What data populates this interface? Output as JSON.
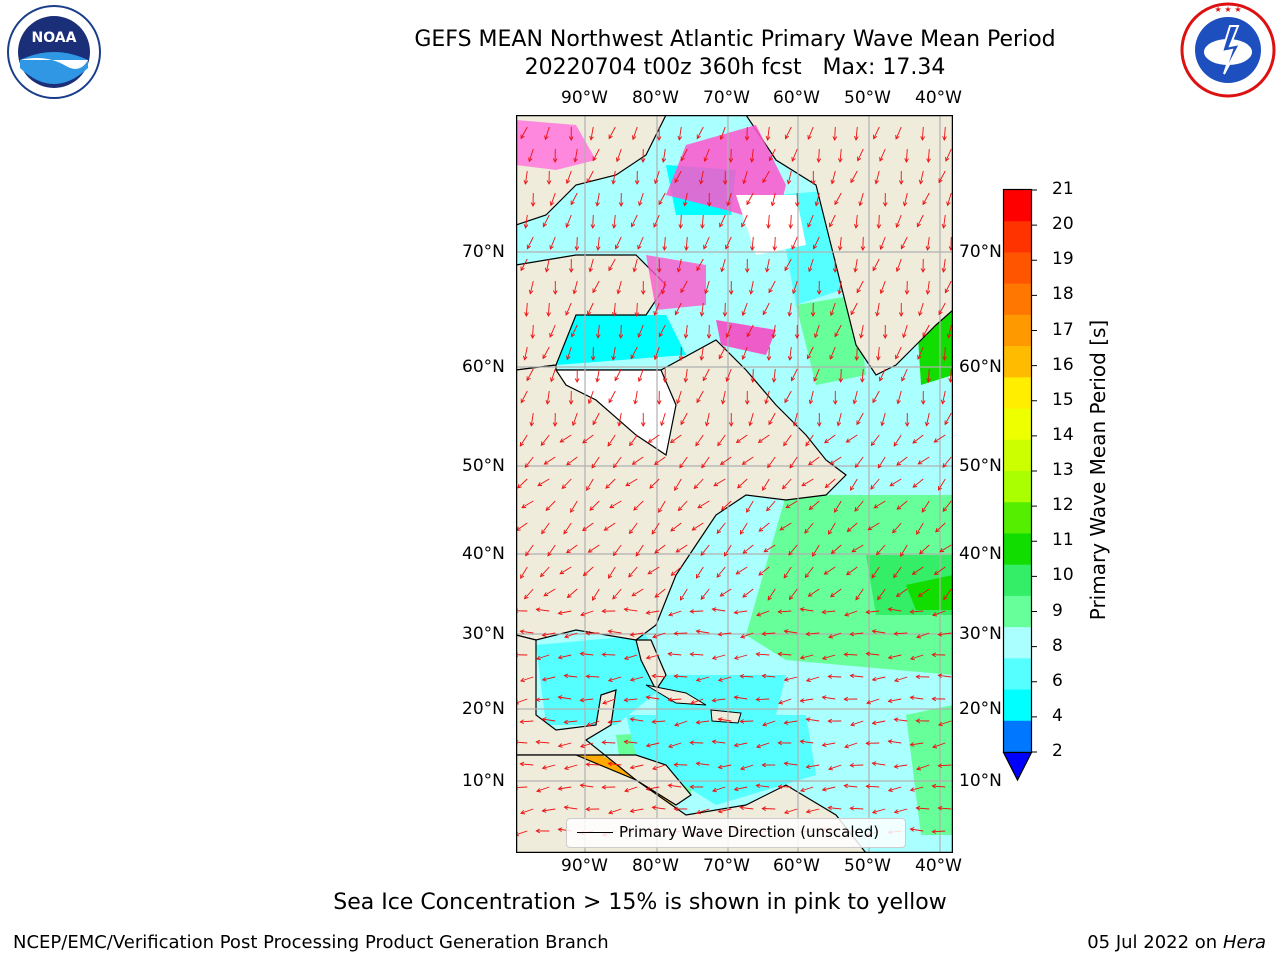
{
  "title": {
    "line1": "GEFS MEAN Northwest Atlantic Primary Wave Mean Period",
    "line2": "20220704 t00z 360h fcst   Max: 17.34"
  },
  "logos": {
    "left": {
      "name": "noaa-logo",
      "text": "NOAA",
      "ring_text": "NATIONAL OCEANIC AND ATMOSPHERIC ADMINISTRATION · U.S. DEPARTMENT OF COMMERCE"
    },
    "right": {
      "name": "nws-logo",
      "ring_text": "NATIONAL WEATHER SERVICE"
    }
  },
  "axes": {
    "lon_labels": [
      "90°W",
      "80°W",
      "70°W",
      "60°W",
      "50°W",
      "40°W"
    ],
    "lat_labels": [
      "70°N",
      "60°N",
      "50°N",
      "40°N",
      "30°N",
      "20°N",
      "10°N"
    ]
  },
  "colorbar": {
    "label": "Primary Wave Mean Period [s]",
    "ticks": [
      "21",
      "20",
      "19",
      "18",
      "17",
      "16",
      "15",
      "14",
      "13",
      "12",
      "11",
      "10",
      "9",
      "8",
      "6",
      "4",
      "2"
    ],
    "colors_top_to_bottom": [
      "#ff0000",
      "#ff3300",
      "#ff5500",
      "#ff7700",
      "#ff9900",
      "#ffbb00",
      "#ffee00",
      "#eeff00",
      "#ccff00",
      "#aaff00",
      "#55ee00",
      "#11dd00",
      "#33ee66",
      "#66ff99",
      "#aaffff",
      "#55ffff",
      "#00ffff",
      "#0077ff"
    ],
    "under_color": "#0000ff"
  },
  "legend": {
    "label": "Primary Wave Direction (unscaled)"
  },
  "ice_note": "Sea Ice Concentration > 15% is shown in pink to yellow",
  "footer": {
    "left": "NCEP/EMC/Verification Post Processing Product Generation Branch",
    "right_date": "05 Jul 2022 on ",
    "right_host": "Hera"
  },
  "map_colors": {
    "land": "#efecdc",
    "grid": "#b0b0b0",
    "arrow": "#ff0000"
  }
}
